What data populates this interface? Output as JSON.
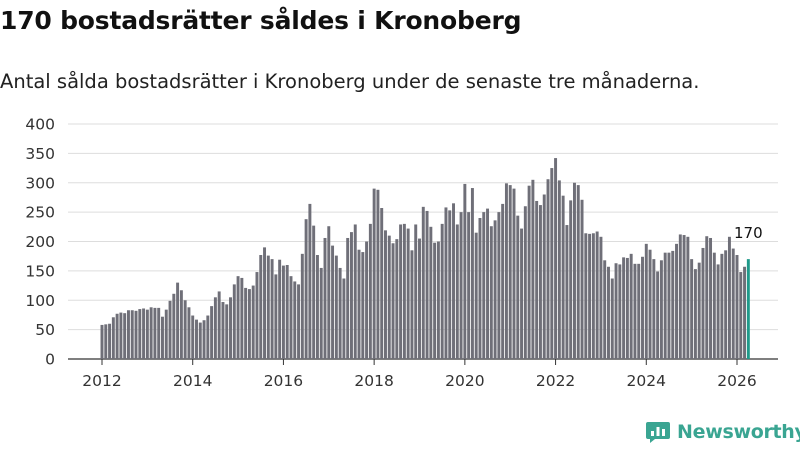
{
  "header": {
    "title": "170 bostadsrätter såldes i Kronoberg",
    "subtitle": "Antal sålda bostadsrätter i Kronoberg under de senaste tre månaderna."
  },
  "brand": {
    "name": "Newsworthy",
    "color": "#3aa592",
    "icon": "newsworthy-logo-icon"
  },
  "colors": {
    "bar": "#6f6f78",
    "highlight": "#1f9a8a",
    "grid": "#dddddd",
    "text": "#111111"
  },
  "chart_data": {
    "type": "bar",
    "title": "170 bostadsrätter såldes i Kronoberg",
    "xlabel": "",
    "ylabel": "",
    "ylim": [
      0,
      400
    ],
    "yticks": [
      0,
      50,
      100,
      150,
      200,
      250,
      300,
      350,
      400
    ],
    "xticks": [
      2012,
      2014,
      2016,
      2018,
      2020,
      2022,
      2024,
      2026
    ],
    "grid": true,
    "start": {
      "year": 2012,
      "month": 1
    },
    "highlight_label": "170",
    "values": [
      58,
      59,
      60,
      71,
      77,
      79,
      78,
      83,
      83,
      82,
      85,
      86,
      84,
      88,
      87,
      87,
      72,
      84,
      99,
      111,
      130,
      117,
      100,
      88,
      74,
      67,
      62,
      66,
      74,
      90,
      105,
      115,
      97,
      93,
      105,
      127,
      141,
      138,
      121,
      119,
      125,
      148,
      177,
      190,
      176,
      170,
      144,
      169,
      159,
      160,
      141,
      132,
      127,
      179,
      238,
      264,
      227,
      177,
      155,
      206,
      226,
      193,
      176,
      155,
      137,
      206,
      216,
      229,
      186,
      182,
      200,
      230,
      290,
      288,
      257,
      219,
      210,
      197,
      204,
      229,
      230,
      222,
      185,
      229,
      205,
      259,
      252,
      225,
      198,
      200,
      230,
      258,
      253,
      265,
      229,
      250,
      298,
      250,
      291,
      215,
      240,
      250,
      256,
      226,
      236,
      250,
      264,
      299,
      296,
      290,
      244,
      222,
      260,
      295,
      305,
      269,
      262,
      280,
      306,
      325,
      342,
      304,
      278,
      228,
      270,
      300,
      296,
      271,
      214,
      213,
      214,
      217,
      208,
      168,
      157,
      137,
      163,
      161,
      173,
      172,
      179,
      162,
      162,
      174,
      196,
      186,
      170,
      149,
      168,
      181,
      181,
      184,
      196,
      212,
      211,
      208,
      170,
      153,
      164,
      189,
      209,
      206,
      181,
      161,
      179,
      185,
      208,
      188,
      177,
      148,
      157,
      170
    ]
  }
}
